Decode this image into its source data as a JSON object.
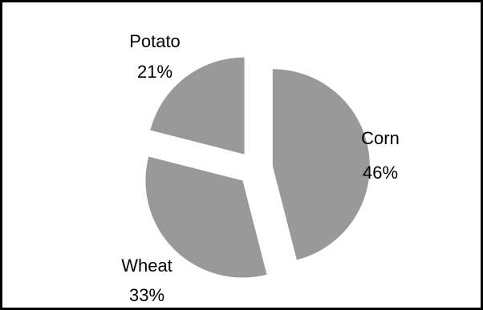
{
  "chart_data": {
    "type": "pie",
    "exploded": true,
    "slices": [
      {
        "label": "Corn",
        "value": 46,
        "percent_text": "46%"
      },
      {
        "label": "Wheat",
        "value": 33,
        "percent_text": "33%"
      },
      {
        "label": "Potato",
        "value": 21,
        "percent_text": "21%"
      }
    ],
    "colors": {
      "slice_fill": "#999999",
      "border": "#000000",
      "background": "#ffffff",
      "label_text": "#000000"
    }
  }
}
